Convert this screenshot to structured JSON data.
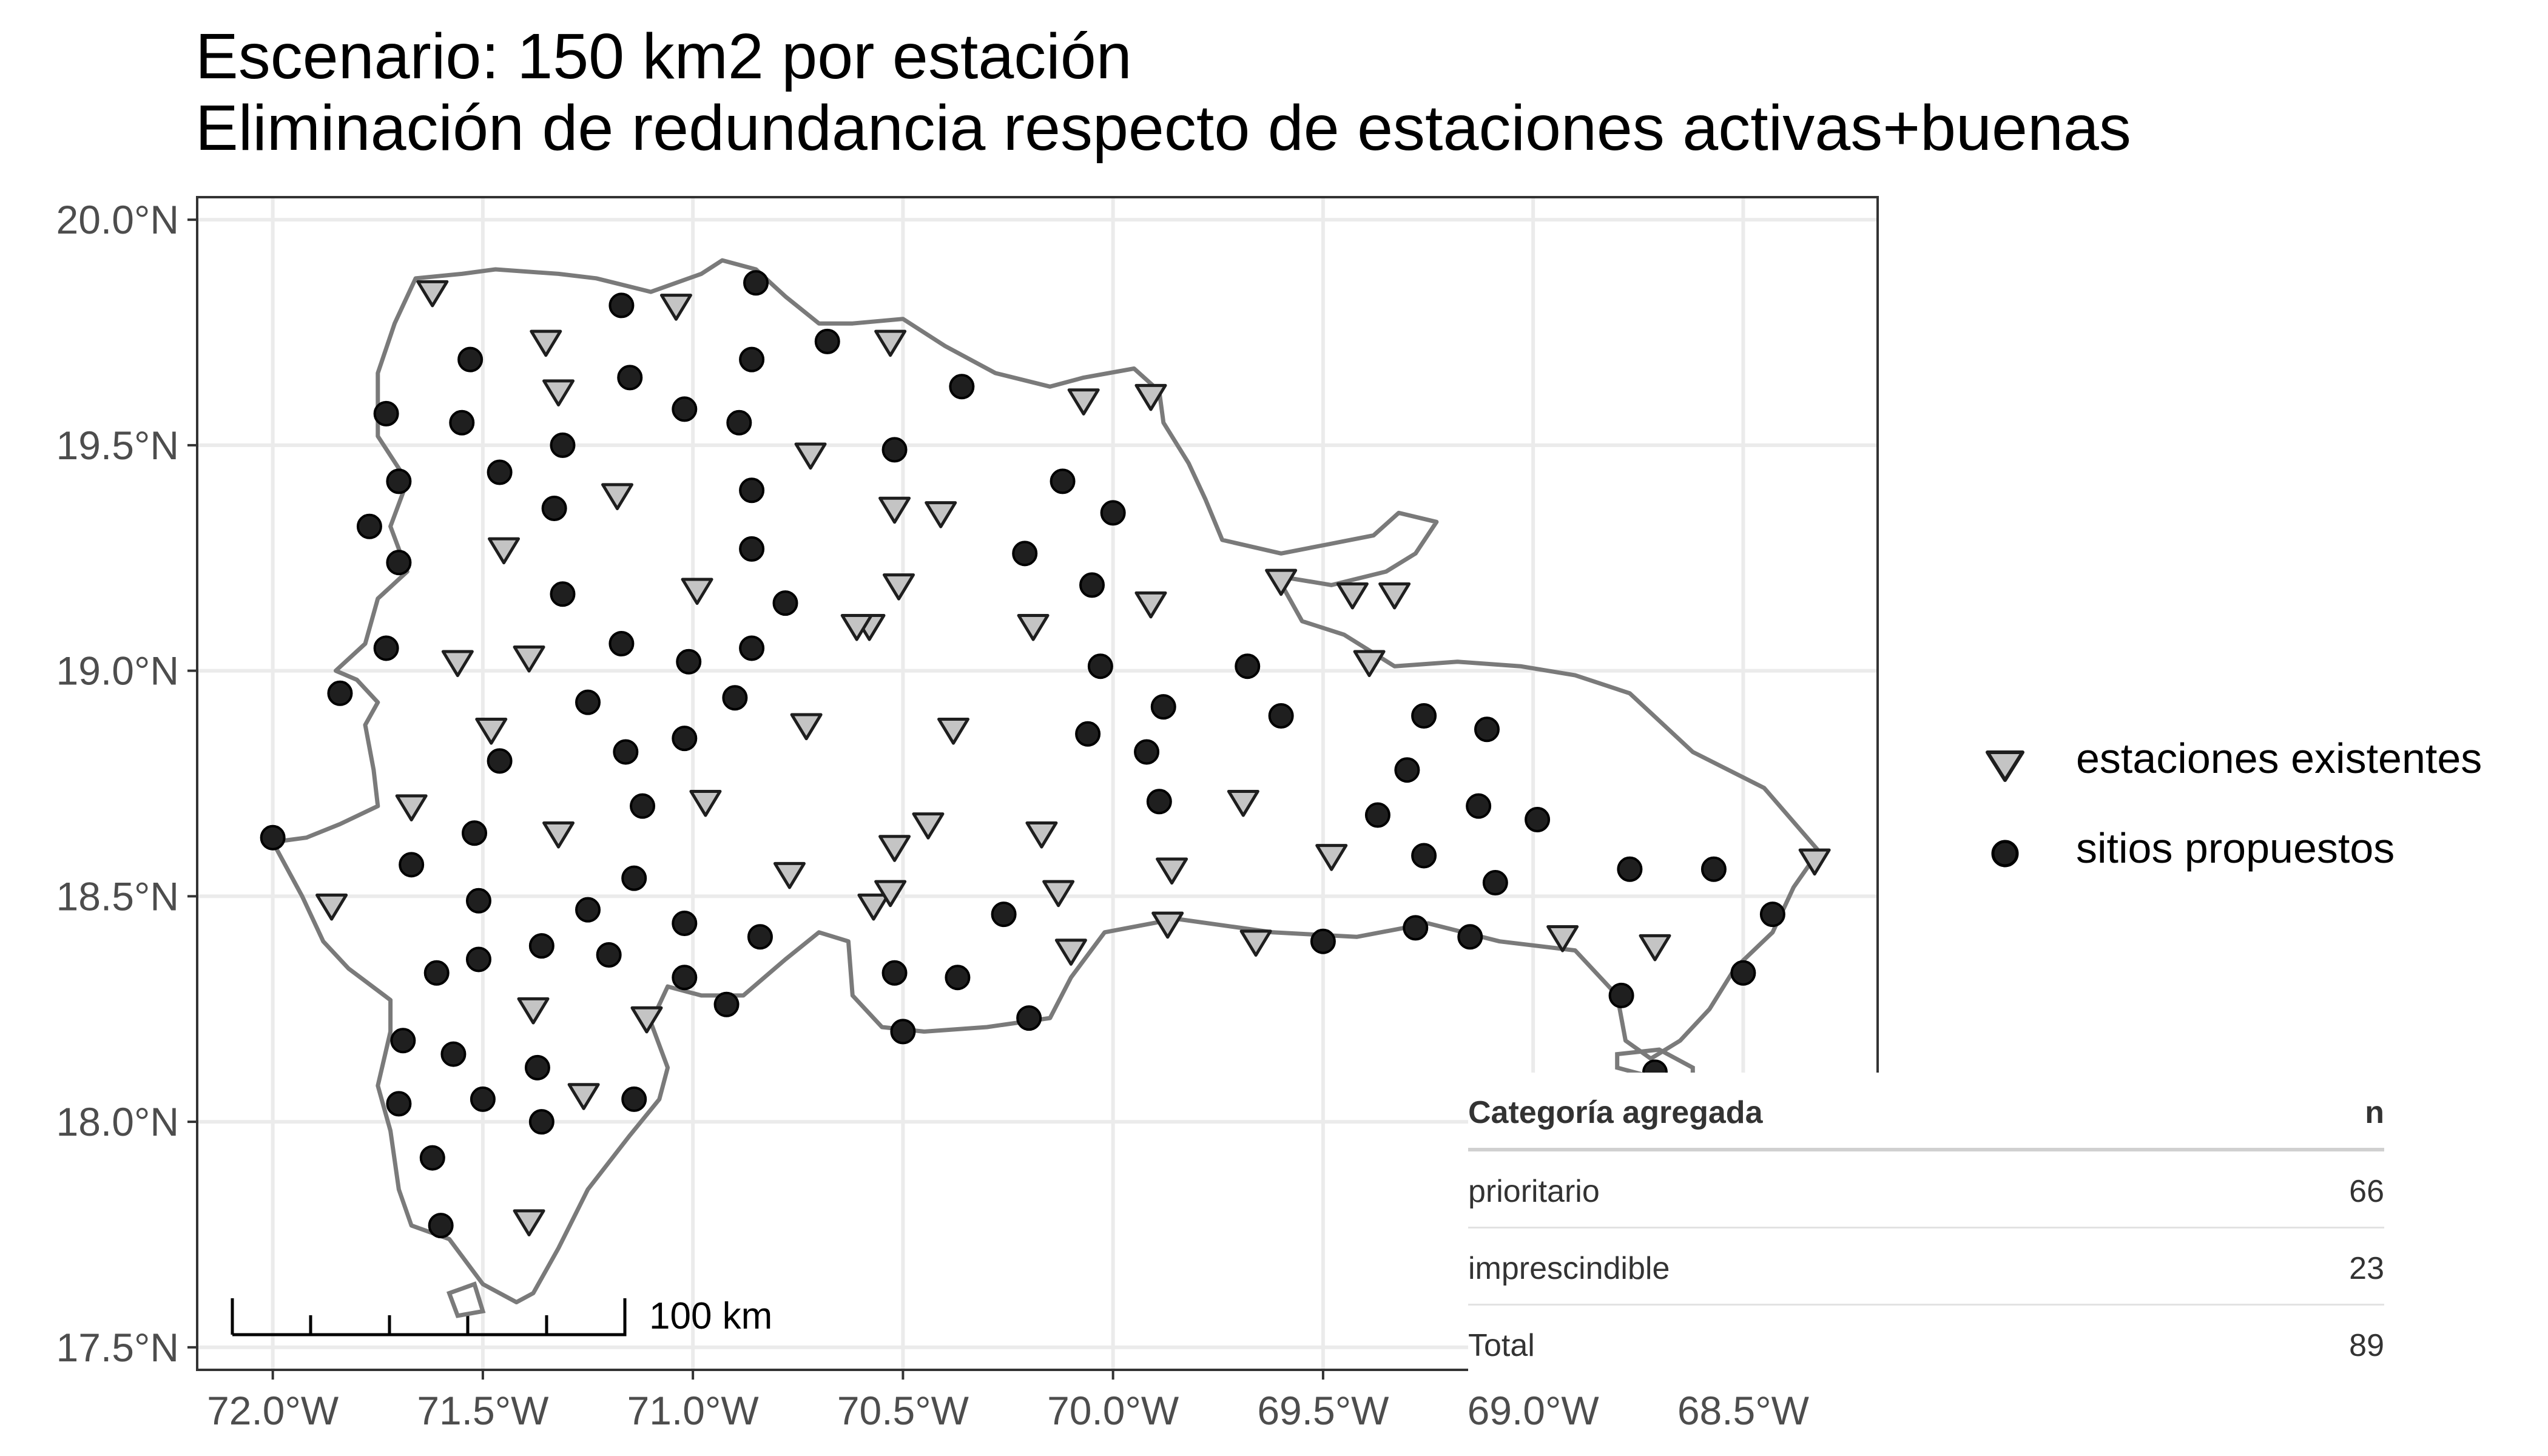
{
  "title": {
    "line1": "Escenario: 150 km2 por estación",
    "line2": "Eliminación de redundancia respecto de estaciones activas+buenas"
  },
  "colors": {
    "border": "#7a7a7a",
    "existing_fill": "#c4c4c4",
    "proposed_fill": "#1f1f1f",
    "grid": "#ebebeb"
  },
  "chart_data": {
    "type": "scatter",
    "xlim": [
      -72.18,
      -68.18
    ],
    "ylim": [
      17.45,
      20.05
    ],
    "x_ticks": [
      -72.0,
      -71.5,
      -71.0,
      -70.5,
      -70.0,
      -69.5,
      -69.0,
      -68.5
    ],
    "y_ticks": [
      17.5,
      18.0,
      18.5,
      19.0,
      19.5,
      20.0
    ],
    "x_tick_labels": [
      "72.0°W",
      "71.5°W",
      "71.0°W",
      "70.5°W",
      "70.0°W",
      "69.5°W",
      "69.0°W",
      "68.5°W"
    ],
    "y_tick_labels": [
      "17.5°N",
      "18.0°N",
      "18.5°N",
      "19.0°N",
      "19.5°N",
      "20.0°N"
    ],
    "grid": true,
    "legend_position": "right",
    "scale_bar": {
      "label": "100 km"
    },
    "series": [
      {
        "name": "estaciones existentes",
        "marker": "triangle-down",
        "points": [
          [
            -71.62,
            19.84
          ],
          [
            -71.35,
            19.73
          ],
          [
            -71.04,
            19.81
          ],
          [
            -70.53,
            19.73
          ],
          [
            -71.32,
            19.62
          ],
          [
            -70.07,
            19.6
          ],
          [
            -69.91,
            19.61
          ],
          [
            -70.72,
            19.48
          ],
          [
            -71.18,
            19.39
          ],
          [
            -70.52,
            19.36
          ],
          [
            -70.41,
            19.35
          ],
          [
            -71.45,
            19.27
          ],
          [
            -70.99,
            19.18
          ],
          [
            -70.51,
            19.19
          ],
          [
            -70.58,
            19.1
          ],
          [
            -70.61,
            19.1
          ],
          [
            -70.19,
            19.1
          ],
          [
            -69.91,
            19.15
          ],
          [
            -69.6,
            19.2
          ],
          [
            -69.43,
            19.17
          ],
          [
            -69.33,
            19.17
          ],
          [
            -69.39,
            19.02
          ],
          [
            -71.56,
            19.02
          ],
          [
            -71.39,
            19.03
          ],
          [
            -71.48,
            18.87
          ],
          [
            -70.73,
            18.88
          ],
          [
            -70.38,
            18.87
          ],
          [
            -71.67,
            18.7
          ],
          [
            -70.97,
            18.71
          ],
          [
            -69.69,
            18.71
          ],
          [
            -71.32,
            18.64
          ],
          [
            -70.44,
            18.66
          ],
          [
            -70.17,
            18.64
          ],
          [
            -70.52,
            18.61
          ],
          [
            -69.86,
            18.56
          ],
          [
            -69.48,
            18.59
          ],
          [
            -70.77,
            18.55
          ],
          [
            -70.57,
            18.48
          ],
          [
            -70.53,
            18.51
          ],
          [
            -70.13,
            18.51
          ],
          [
            -71.86,
            18.48
          ],
          [
            -70.1,
            18.38
          ],
          [
            -69.87,
            18.44
          ],
          [
            -69.66,
            18.4
          ],
          [
            -68.93,
            18.41
          ],
          [
            -68.71,
            18.39
          ],
          [
            -68.33,
            18.58
          ],
          [
            -71.38,
            18.25
          ],
          [
            -71.11,
            18.23
          ],
          [
            -71.26,
            18.06
          ],
          [
            -71.39,
            17.78
          ]
        ]
      },
      {
        "name": "sitios propuestos",
        "marker": "circle",
        "points": [
          [
            -71.17,
            19.81
          ],
          [
            -70.85,
            19.86
          ],
          [
            -71.53,
            19.69
          ],
          [
            -71.15,
            19.65
          ],
          [
            -70.86,
            19.69
          ],
          [
            -70.68,
            19.73
          ],
          [
            -71.73,
            19.57
          ],
          [
            -71.55,
            19.55
          ],
          [
            -71.02,
            19.58
          ],
          [
            -70.89,
            19.55
          ],
          [
            -70.36,
            19.63
          ],
          [
            -71.31,
            19.5
          ],
          [
            -70.52,
            19.49
          ],
          [
            -71.46,
            19.44
          ],
          [
            -71.7,
            19.42
          ],
          [
            -71.33,
            19.36
          ],
          [
            -70.86,
            19.4
          ],
          [
            -70.12,
            19.42
          ],
          [
            -70.0,
            19.35
          ],
          [
            -71.77,
            19.32
          ],
          [
            -71.7,
            19.24
          ],
          [
            -70.86,
            19.27
          ],
          [
            -70.21,
            19.26
          ],
          [
            -71.31,
            19.17
          ],
          [
            -70.78,
            19.15
          ],
          [
            -70.05,
            19.19
          ],
          [
            -71.73,
            19.05
          ],
          [
            -71.17,
            19.06
          ],
          [
            -71.01,
            19.02
          ],
          [
            -70.86,
            19.05
          ],
          [
            -70.03,
            19.01
          ],
          [
            -69.68,
            19.01
          ],
          [
            -71.84,
            18.95
          ],
          [
            -71.25,
            18.93
          ],
          [
            -70.9,
            18.94
          ],
          [
            -69.88,
            18.92
          ],
          [
            -69.6,
            18.9
          ],
          [
            -71.16,
            18.82
          ],
          [
            -71.02,
            18.85
          ],
          [
            -70.06,
            18.86
          ],
          [
            -69.92,
            18.82
          ],
          [
            -69.26,
            18.9
          ],
          [
            -69.11,
            18.87
          ],
          [
            -71.46,
            18.8
          ],
          [
            -69.3,
            18.78
          ],
          [
            -71.12,
            18.7
          ],
          [
            -69.89,
            18.71
          ],
          [
            -69.37,
            18.68
          ],
          [
            -69.13,
            18.7
          ],
          [
            -68.99,
            18.67
          ],
          [
            -71.52,
            18.64
          ],
          [
            -71.67,
            18.57
          ],
          [
            -71.14,
            18.54
          ],
          [
            -69.26,
            18.59
          ],
          [
            -69.09,
            18.53
          ],
          [
            -68.77,
            18.56
          ],
          [
            -68.57,
            18.56
          ],
          [
            -71.51,
            18.49
          ],
          [
            -71.25,
            18.47
          ],
          [
            -71.02,
            18.44
          ],
          [
            -70.26,
            18.46
          ],
          [
            -71.36,
            18.39
          ],
          [
            -71.2,
            18.37
          ],
          [
            -70.84,
            18.41
          ],
          [
            -69.5,
            18.4
          ],
          [
            -69.28,
            18.43
          ],
          [
            -69.15,
            18.41
          ],
          [
            -68.43,
            18.46
          ],
          [
            -71.61,
            18.33
          ],
          [
            -71.51,
            18.36
          ],
          [
            -71.02,
            18.32
          ],
          [
            -70.92,
            18.26
          ],
          [
            -70.52,
            18.33
          ],
          [
            -70.37,
            18.32
          ],
          [
            -70.2,
            18.23
          ],
          [
            -68.79,
            18.28
          ],
          [
            -68.5,
            18.33
          ],
          [
            -72.0,
            18.63
          ],
          [
            -71.69,
            18.18
          ],
          [
            -71.57,
            18.15
          ],
          [
            -71.37,
            18.12
          ],
          [
            -70.5,
            18.2
          ],
          [
            -68.71,
            18.11
          ],
          [
            -71.7,
            18.04
          ],
          [
            -71.5,
            18.05
          ],
          [
            -71.36,
            18.0
          ],
          [
            -71.14,
            18.05
          ],
          [
            -71.62,
            17.92
          ],
          [
            -71.6,
            17.77
          ]
        ]
      }
    ]
  },
  "legend": {
    "items": [
      {
        "label": "estaciones existentes"
      },
      {
        "label": "sitios propuestos"
      }
    ]
  },
  "summary_table": {
    "header": [
      "Categoría agregada",
      "n"
    ],
    "rows": [
      [
        "prioritario",
        "66"
      ],
      [
        "imprescindible",
        "23"
      ]
    ],
    "total": [
      "Total",
      "89"
    ]
  }
}
